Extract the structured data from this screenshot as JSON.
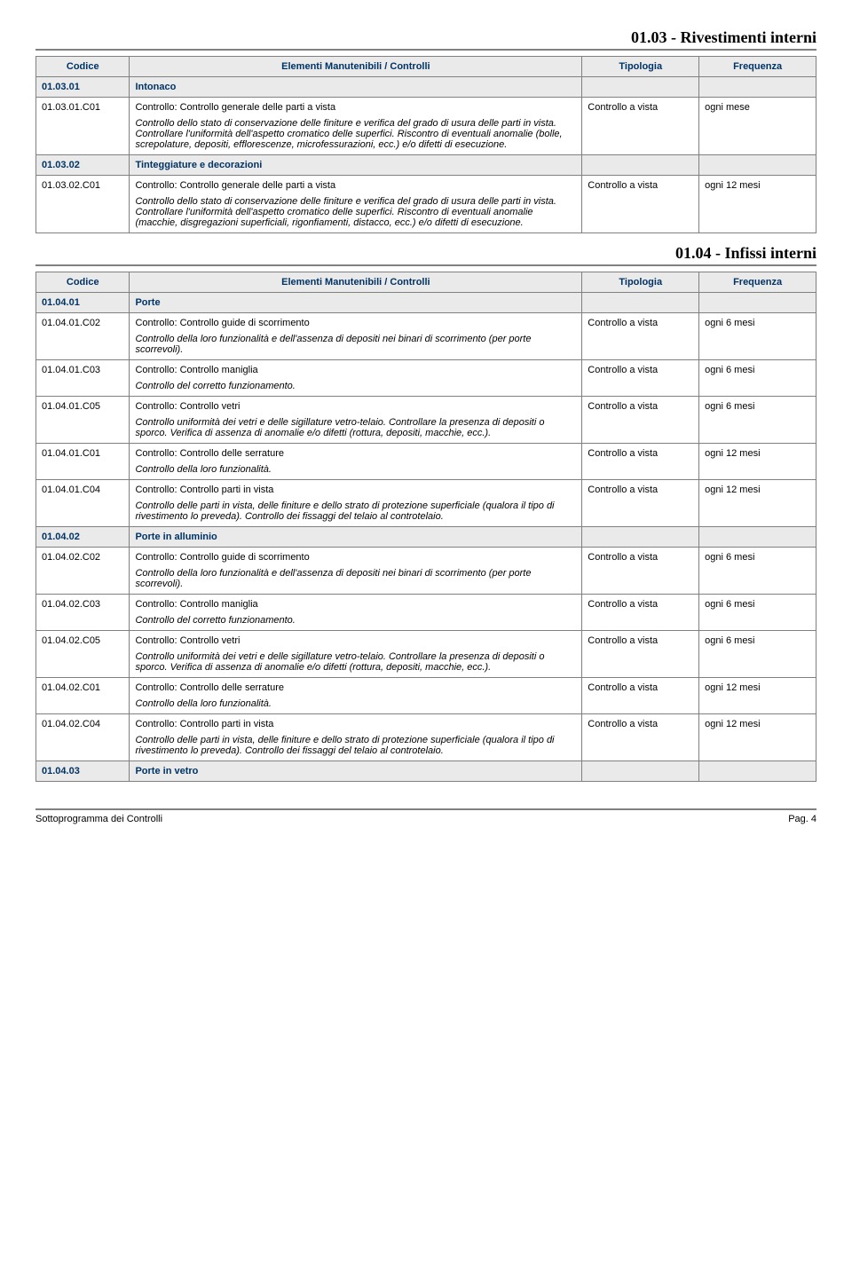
{
  "colors": {
    "border": "#808080",
    "header_bg": "#eaeaea",
    "header_text": "#003366",
    "text": "#000000",
    "background": "#ffffff"
  },
  "sections": [
    {
      "title": "01.03 - Rivestimenti interni",
      "headers": {
        "codice": "Codice",
        "desc": "Elementi Manutenibili / Controlli",
        "tipo": "Tipologia",
        "freq": "Frequenza"
      },
      "rows": [
        {
          "kind": "cat",
          "code": "01.03.01",
          "name": "Intonaco"
        },
        {
          "kind": "item",
          "code": "01.03.01.C01",
          "title": "Controllo: Controllo generale delle parti a vista",
          "desc": "Controllo dello stato di conservazione delle finiture e verifica del grado di usura delle parti in vista. Controllare l'uniformità dell'aspetto cromatico delle superfici. Riscontro di eventuali anomalie (bolle, screpolature, depositi, efflorescenze, microfessurazioni, ecc.) e/o difetti di esecuzione.",
          "tipo": "Controllo a vista",
          "freq": "ogni mese"
        },
        {
          "kind": "cat",
          "code": "01.03.02",
          "name": "Tinteggiature e decorazioni"
        },
        {
          "kind": "item",
          "code": "01.03.02.C01",
          "title": "Controllo: Controllo generale delle parti a vista",
          "desc": "Controllo dello stato di conservazione delle finiture e verifica del grado di usura delle parti in vista. Controllare l'uniformità dell'aspetto cromatico delle superfici. Riscontro di eventuali anomalie (macchie, disgregazioni superficiali, rigonfiamenti, distacco, ecc.) e/o difetti di esecuzione.",
          "tipo": "Controllo a vista",
          "freq": "ogni 12 mesi"
        }
      ]
    },
    {
      "title": "01.04 - Infissi interni",
      "headers": {
        "codice": "Codice",
        "desc": "Elementi Manutenibili / Controlli",
        "tipo": "Tipologia",
        "freq": "Frequenza"
      },
      "rows": [
        {
          "kind": "cat",
          "code": "01.04.01",
          "name": "Porte"
        },
        {
          "kind": "item",
          "code": "01.04.01.C02",
          "title": "Controllo: Controllo guide di scorrimento",
          "desc": "Controllo della loro funzionalità e dell'assenza di depositi nei binari di scorrimento (per porte scorrevoli).",
          "tipo": "Controllo a vista",
          "freq": "ogni 6 mesi"
        },
        {
          "kind": "item",
          "code": "01.04.01.C03",
          "title": "Controllo: Controllo maniglia",
          "desc": "Controllo del corretto funzionamento.",
          "tipo": "Controllo a vista",
          "freq": "ogni 6 mesi"
        },
        {
          "kind": "item",
          "code": "01.04.01.C05",
          "title": "Controllo: Controllo vetri",
          "desc": "Controllo uniformità dei vetri e delle sigillature vetro-telaio. Controllare la presenza di depositi o sporco. Verifica di assenza di anomalie e/o difetti (rottura, depositi, macchie, ecc.).",
          "tipo": "Controllo a vista",
          "freq": "ogni 6 mesi"
        },
        {
          "kind": "item",
          "code": "01.04.01.C01",
          "title": "Controllo: Controllo delle serrature",
          "desc": "Controllo della loro funzionalità.",
          "tipo": "Controllo a vista",
          "freq": "ogni 12 mesi"
        },
        {
          "kind": "item",
          "code": "01.04.01.C04",
          "title": "Controllo: Controllo parti in vista",
          "desc": "Controllo delle parti in vista, delle finiture e dello strato di protezione superficiale (qualora il tipo di rivestimento lo preveda). Controllo dei fissaggi del telaio al controtelaio.",
          "tipo": "Controllo a vista",
          "freq": "ogni 12 mesi"
        },
        {
          "kind": "cat",
          "code": "01.04.02",
          "name": "Porte in alluminio"
        },
        {
          "kind": "item",
          "code": "01.04.02.C02",
          "title": "Controllo: Controllo guide di scorrimento",
          "desc": "Controllo della loro funzionalità e dell'assenza di depositi nei binari di scorrimento (per porte scorrevoli).",
          "tipo": "Controllo a vista",
          "freq": "ogni 6 mesi"
        },
        {
          "kind": "item",
          "code": "01.04.02.C03",
          "title": "Controllo: Controllo maniglia",
          "desc": "Controllo del corretto funzionamento.",
          "tipo": "Controllo a vista",
          "freq": "ogni 6 mesi"
        },
        {
          "kind": "item",
          "code": "01.04.02.C05",
          "title": "Controllo: Controllo vetri",
          "desc": "Controllo uniformità dei vetri e delle sigillature vetro-telaio. Controllare la presenza di depositi o sporco. Verifica di assenza di anomalie e/o difetti (rottura, depositi, macchie, ecc.).",
          "tipo": "Controllo a vista",
          "freq": "ogni 6 mesi"
        },
        {
          "kind": "item",
          "code": "01.04.02.C01",
          "title": "Controllo: Controllo delle serrature",
          "desc": "Controllo della loro funzionalità.",
          "tipo": "Controllo a vista",
          "freq": "ogni 12 mesi"
        },
        {
          "kind": "item",
          "code": "01.04.02.C04",
          "title": "Controllo: Controllo parti in vista",
          "desc": "Controllo delle parti in vista, delle finiture e dello strato di protezione superficiale (qualora il tipo di rivestimento lo preveda). Controllo dei fissaggi del telaio al controtelaio.",
          "tipo": "Controllo a vista",
          "freq": "ogni 12 mesi"
        },
        {
          "kind": "cat",
          "code": "01.04.03",
          "name": "Porte in vetro"
        }
      ]
    }
  ],
  "footer": {
    "left": "Sottoprogramma dei Controlli",
    "right": "Pag. 4"
  }
}
